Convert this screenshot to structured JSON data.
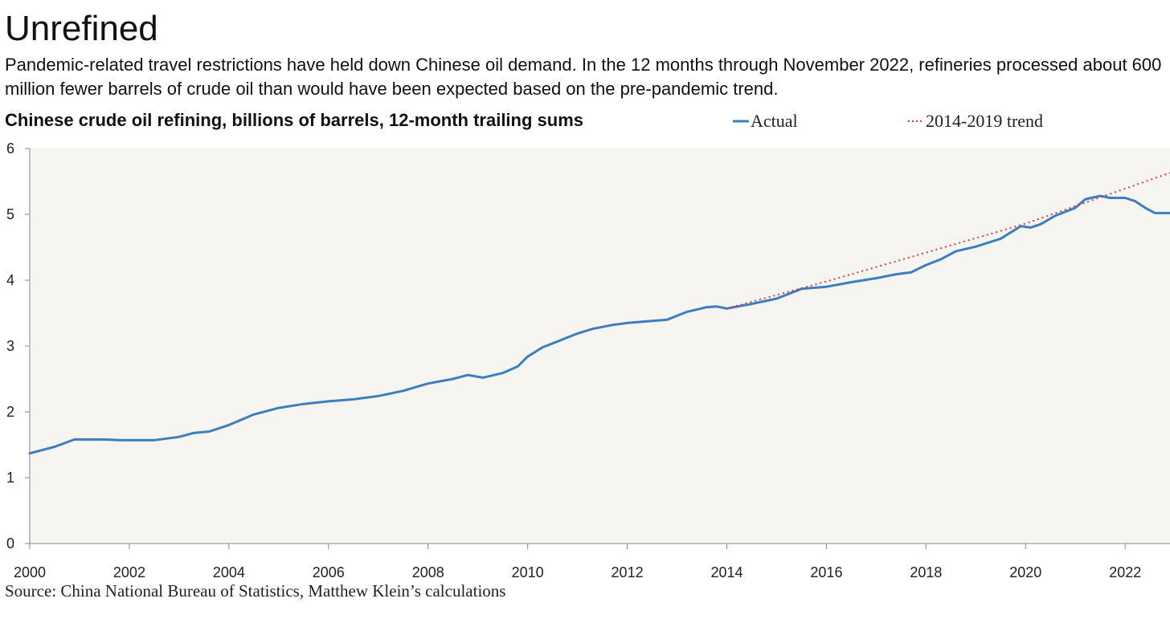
{
  "header": {
    "title": "Unrefined",
    "subtitle": "Pandemic-related travel restrictions have held down Chinese oil demand. In the 12 months through November 2022, refineries processed about 600 million fewer barrels of crude oil than would have been expected based on the pre-pandemic trend."
  },
  "source": "Source: China National Bureau of Statistics, Matthew Klein’s calculations",
  "colors": {
    "actual": "#3a7fbf",
    "trend": "#e03a3a",
    "plot_background": "#f6f5f2"
  },
  "chart_data": {
    "type": "line",
    "title": "Chinese crude oil refining, billions of barrels, 12-month trailing sums",
    "xlabel": "",
    "ylabel": "",
    "xlim": [
      2000,
      2022.9
    ],
    "ylim": [
      0,
      6
    ],
    "grid": false,
    "legend_position": "top-right",
    "x_ticks": [
      "2000",
      "2002",
      "2004",
      "2006",
      "2008",
      "2010",
      "2012",
      "2014",
      "2016",
      "2018",
      "2020",
      "2022"
    ],
    "y_ticks": [
      "0",
      "1",
      "2",
      "3",
      "4",
      "5",
      "6"
    ],
    "series": [
      {
        "name": "Actual",
        "style": "solid",
        "x": [
          2000.0,
          2000.5,
          2000.9,
          2001.5,
          2001.8,
          2002.5,
          2003.0,
          2003.3,
          2003.6,
          2004.0,
          2004.5,
          2005.0,
          2005.5,
          2006.0,
          2006.5,
          2007.0,
          2007.5,
          2008.0,
          2008.5,
          2008.8,
          2009.1,
          2009.5,
          2009.8,
          2010.0,
          2010.3,
          2010.6,
          2011.0,
          2011.3,
          2011.7,
          2012.0,
          2012.5,
          2012.8,
          2013.2,
          2013.6,
          2013.8,
          2014.0,
          2014.5,
          2015.0,
          2015.5,
          2016.0,
          2016.5,
          2017.0,
          2017.4,
          2017.7,
          2018.0,
          2018.3,
          2018.6,
          2019.0,
          2019.5,
          2019.9,
          2020.1,
          2020.3,
          2020.6,
          2021.0,
          2021.2,
          2021.5,
          2021.7,
          2022.0,
          2022.2,
          2022.4,
          2022.6,
          2022.9
        ],
        "values": [
          1.37,
          1.47,
          1.58,
          1.58,
          1.57,
          1.57,
          1.62,
          1.68,
          1.7,
          1.8,
          1.96,
          2.06,
          2.12,
          2.16,
          2.19,
          2.24,
          2.32,
          2.43,
          2.5,
          2.56,
          2.52,
          2.59,
          2.69,
          2.84,
          2.98,
          3.07,
          3.19,
          3.26,
          3.32,
          3.35,
          3.38,
          3.4,
          3.52,
          3.59,
          3.6,
          3.57,
          3.64,
          3.72,
          3.87,
          3.9,
          3.97,
          4.03,
          4.09,
          4.12,
          4.23,
          4.32,
          4.44,
          4.51,
          4.63,
          4.82,
          4.8,
          4.85,
          4.98,
          5.1,
          5.23,
          5.28,
          5.25,
          5.25,
          5.2,
          5.1,
          5.02,
          5.02
        ]
      },
      {
        "name": "2014-2019 trend",
        "style": "dotted",
        "x": [
          2014.0,
          2016.0,
          2018.0,
          2020.0,
          2022.9
        ],
        "values": [
          3.57,
          3.98,
          4.42,
          4.86,
          5.63
        ]
      }
    ]
  }
}
